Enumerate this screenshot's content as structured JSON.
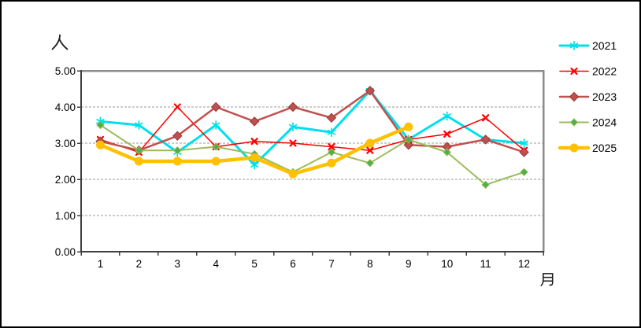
{
  "chart_data": {
    "type": "line",
    "title": "",
    "y_unit_label": "人",
    "x_unit_label": "月",
    "categories": [
      "1",
      "2",
      "3",
      "4",
      "5",
      "6",
      "7",
      "8",
      "9",
      "10",
      "11",
      "12"
    ],
    "ytick_labels": [
      "0.00",
      "1.00",
      "2.00",
      "3.00",
      "4.00",
      "5.00"
    ],
    "ylim": [
      0,
      5
    ],
    "ytick_step": 1,
    "grid": "horizontal-dashed",
    "grid_color": "#999999",
    "axis_color": "#404040",
    "plot_border_color": "#8c8c8c",
    "background_color": "#ffffff",
    "legend_position": "right",
    "series": [
      {
        "name": "2021",
        "color": "#00E0EA",
        "marker": "asterisk",
        "marker_size": 5,
        "line_width": 3,
        "values": [
          3.6,
          3.5,
          2.75,
          3.5,
          2.4,
          3.45,
          3.3,
          4.45,
          3.1,
          3.75,
          3.1,
          3.0
        ]
      },
      {
        "name": "2022",
        "color": "#FF0000",
        "marker": "x",
        "marker_size": 4.5,
        "line_width": 1.5,
        "values": [
          3.1,
          2.75,
          4.0,
          2.9,
          3.05,
          3.0,
          2.9,
          2.8,
          3.1,
          3.25,
          3.7,
          2.8
        ]
      },
      {
        "name": "2023",
        "color": "#C0504D",
        "marker": "diamond",
        "marker_size": 5.5,
        "marker_fill": "#C0504D",
        "marker_stroke": "#953734",
        "line_width": 2.5,
        "values": [
          3.05,
          2.8,
          3.2,
          4.0,
          3.6,
          4.0,
          3.7,
          4.45,
          2.95,
          2.9,
          3.1,
          2.75
        ]
      },
      {
        "name": "2024",
        "color": "#9BBB59",
        "marker": "diamond",
        "marker_size": 4.5,
        "marker_fill": "#4CB04C",
        "marker_stroke": "#9BBB59",
        "line_width": 2,
        "values": [
          3.5,
          2.8,
          2.8,
          2.9,
          2.7,
          2.2,
          2.75,
          2.45,
          3.1,
          2.75,
          1.85,
          2.2
        ]
      },
      {
        "name": "2025",
        "color": "#FFC000",
        "marker": "circle",
        "marker_size": 5.5,
        "marker_fill": "#FFC000",
        "line_width": 4.5,
        "values": [
          2.95,
          2.5,
          2.5,
          2.5,
          2.6,
          2.15,
          2.45,
          3.0,
          3.45,
          null,
          null,
          null
        ]
      }
    ]
  }
}
